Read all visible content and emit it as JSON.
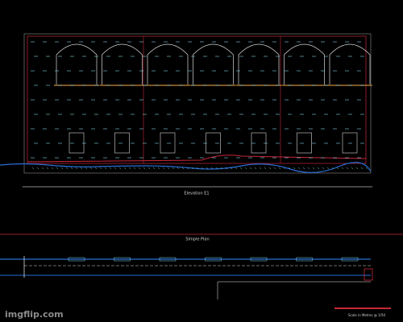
{
  "drawing": {
    "elevation_label": "Elevation E1",
    "plan_label": "Simple Plan",
    "scale_label": "Scale in Metres @ 1/50",
    "watermark": "imgflip.com"
  }
}
